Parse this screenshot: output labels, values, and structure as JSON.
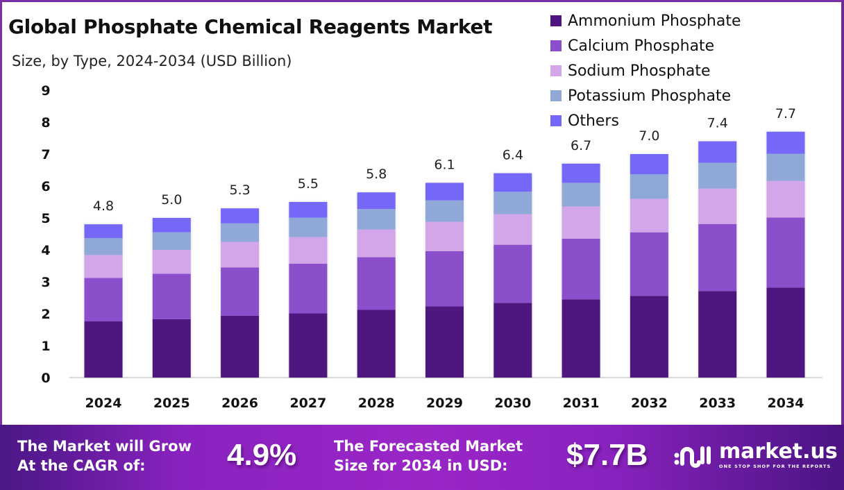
{
  "header": {
    "title": "Global Phosphate Chemical Reagents Market",
    "subtitle": "Size, by Type, 2024-2034 (USD Billion)"
  },
  "colors": {
    "frame": "#7a2ea8",
    "ammonium": "#4f1580",
    "calcium": "#8b4fcc",
    "sodium": "#d2a6e8",
    "potassium": "#8fa8d8",
    "others": "#7468f8"
  },
  "chart_data": {
    "type": "bar",
    "stacked": true,
    "title": "Global Phosphate Chemical Reagents Market",
    "subtitle": "Size, by Type, 2024-2034 (USD Billion)",
    "xlabel": "",
    "ylabel": "",
    "ylim": [
      0,
      9
    ],
    "yticks": [
      "0",
      "1",
      "2",
      "3",
      "4",
      "5",
      "6",
      "7",
      "8",
      "9"
    ],
    "grid": false,
    "legend_position": "top-right",
    "categories": [
      "2024",
      "2025",
      "2026",
      "2027",
      "2028",
      "2029",
      "2030",
      "2031",
      "2032",
      "2033",
      "2034"
    ],
    "totals": [
      4.8,
      5.0,
      5.3,
      5.5,
      5.8,
      6.1,
      6.4,
      6.7,
      7.0,
      7.4,
      7.7
    ],
    "total_labels": [
      "4.8",
      "5.0",
      "5.3",
      "5.5",
      "5.8",
      "6.1",
      "6.4",
      "6.7",
      "7.0",
      "7.4",
      "7.7"
    ],
    "series": [
      {
        "name": "Ammonium Phosphate",
        "color": "#4f1580",
        "values": [
          1.76,
          1.83,
          1.94,
          2.01,
          2.12,
          2.23,
          2.34,
          2.45,
          2.56,
          2.71,
          2.82
        ]
      },
      {
        "name": "Calcium Phosphate",
        "color": "#8b4fcc",
        "values": [
          1.36,
          1.42,
          1.51,
          1.56,
          1.65,
          1.73,
          1.82,
          1.9,
          1.99,
          2.1,
          2.19
        ]
      },
      {
        "name": "Sodium Phosphate",
        "color": "#d2a6e8",
        "values": [
          0.72,
          0.75,
          0.8,
          0.83,
          0.87,
          0.92,
          0.96,
          1.01,
          1.05,
          1.11,
          1.15
        ]
      },
      {
        "name": "Potassium Phosphate",
        "color": "#8fa8d8",
        "values": [
          0.53,
          0.55,
          0.58,
          0.61,
          0.64,
          0.67,
          0.7,
          0.74,
          0.77,
          0.81,
          0.85
        ]
      },
      {
        "name": "Others",
        "color": "#7468f8",
        "values": [
          0.43,
          0.45,
          0.47,
          0.49,
          0.52,
          0.55,
          0.58,
          0.6,
          0.63,
          0.67,
          0.69
        ]
      }
    ]
  },
  "footer": {
    "cagr_text_line1": "The Market will Grow",
    "cagr_text_line2": "At the CAGR of:",
    "cagr_value": "4.9%",
    "forecast_text_line1": "The Forecasted Market",
    "forecast_text_line2": "Size for 2034 in USD:",
    "forecast_value": "$7.7B",
    "logo_name": "market.us",
    "logo_tagline": "ONE STOP SHOP FOR THE REPORTS"
  }
}
